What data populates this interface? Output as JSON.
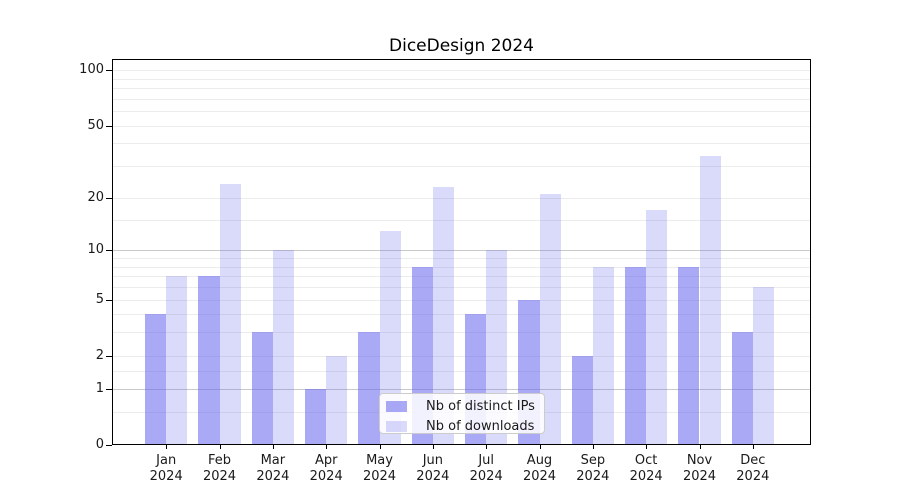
{
  "title": "DiceDesign 2024",
  "chart_data": {
    "type": "bar",
    "title": "DiceDesign 2024",
    "categories": [
      "Jan 2024",
      "Feb 2024",
      "Mar 2024",
      "Apr 2024",
      "May 2024",
      "Jun 2024",
      "Jul 2024",
      "Aug 2024",
      "Sep 2024",
      "Oct 2024",
      "Nov 2024",
      "Dec 2024"
    ],
    "series": [
      {
        "name": "Nb of distinct IPs",
        "color": "rgba(99,99,237,0.55)",
        "values": [
          4,
          7,
          3,
          1,
          3,
          8,
          4,
          5,
          2,
          8,
          8,
          3
        ]
      },
      {
        "name": "Nb of downloads",
        "color": "rgba(99,99,237,0.24)",
        "values": [
          7,
          24,
          10,
          2,
          13,
          23,
          10,
          21,
          8,
          17,
          34,
          6
        ]
      }
    ],
    "y_scale": "log1p",
    "ylim": [
      0,
      115
    ],
    "y_ticks": [
      0,
      1,
      2,
      5,
      10,
      20,
      50,
      100
    ],
    "grid": {
      "major": [
        1,
        10
      ],
      "minor": [
        0.5,
        1.5,
        2,
        3,
        4,
        5,
        6,
        7,
        8,
        9,
        15,
        20,
        30,
        40,
        50,
        60,
        70,
        80,
        90,
        100
      ]
    },
    "legend_position": "lower center",
    "xlabel": "",
    "ylabel": ""
  },
  "colors": {
    "grid_major": "#c9c9c9",
    "grid_minor": "#ececec",
    "axis": "#000000",
    "text": "#1a1a1a",
    "legend_border": "#cccccc",
    "legend_bg": "rgba(255,255,255,0.85)"
  }
}
